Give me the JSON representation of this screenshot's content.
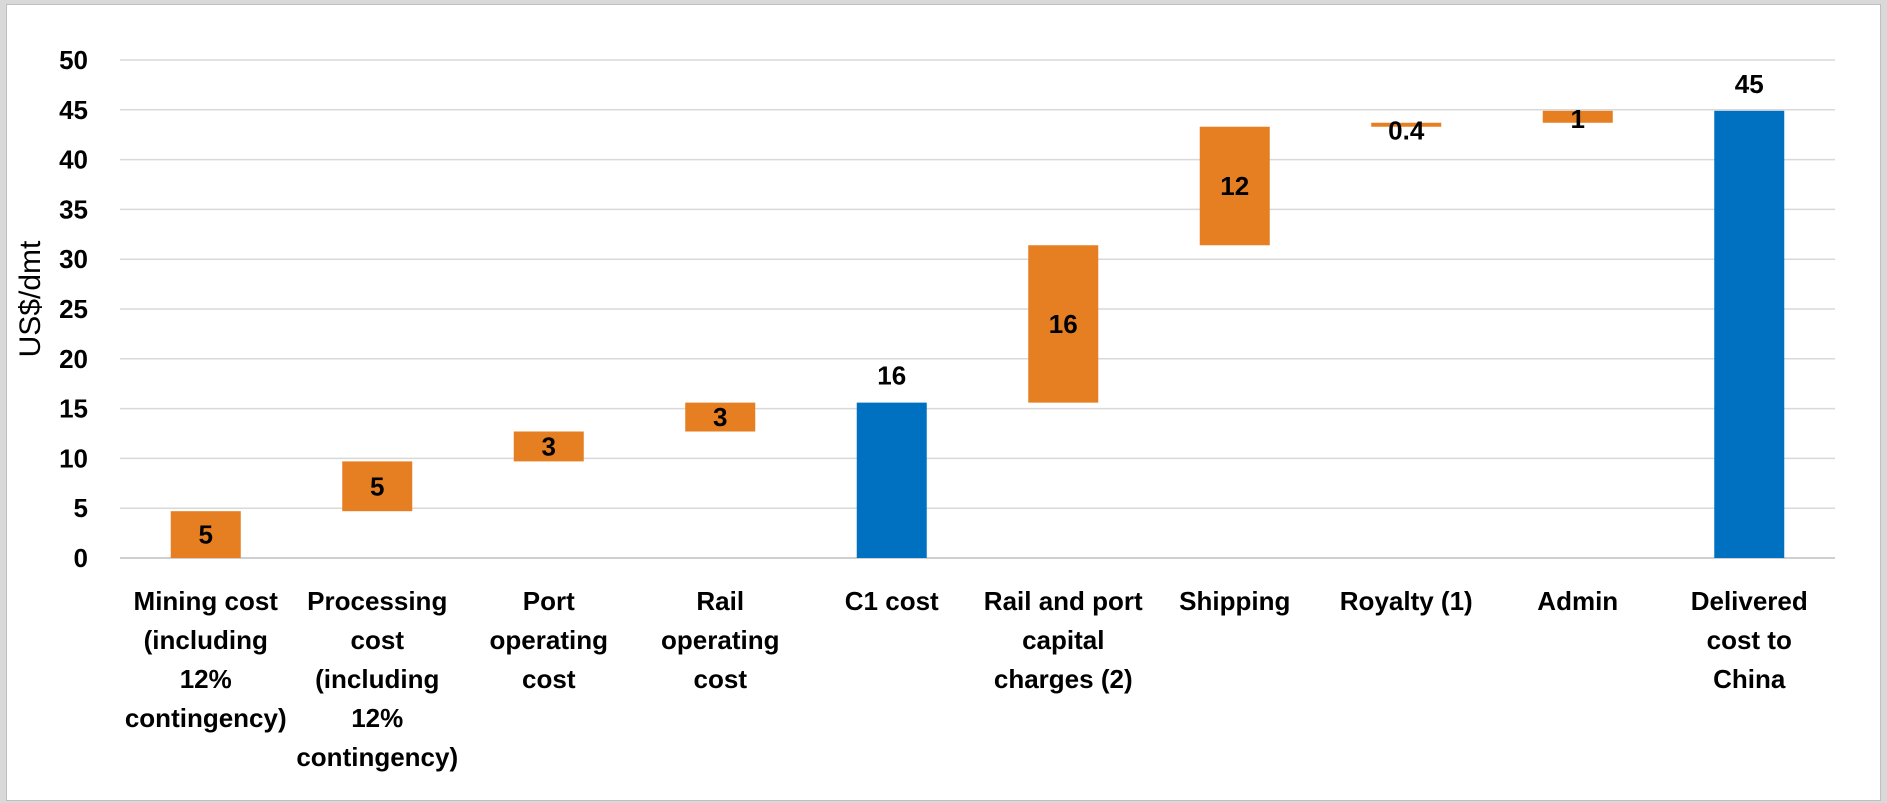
{
  "chart_data": {
    "type": "bar",
    "subtype": "waterfall",
    "ylabel": "US$/dmt",
    "ylim": [
      0,
      50
    ],
    "yticks": [
      0,
      5,
      10,
      15,
      20,
      25,
      30,
      35,
      40,
      45,
      50
    ],
    "grid": true,
    "legend": "none",
    "categories": [
      [
        "Mining cost",
        "(including",
        "12%",
        "contingency)"
      ],
      [
        "Processing",
        "cost",
        "(including",
        "12%",
        "contingency)"
      ],
      [
        "Port",
        "operating",
        "cost"
      ],
      [
        "Rail",
        "operating",
        "cost"
      ],
      [
        "C1 cost"
      ],
      [
        "Rail and port",
        "capital",
        "charges (2)"
      ],
      [
        "Shipping"
      ],
      [
        "Royalty (1)"
      ],
      [
        "Admin"
      ],
      [
        "Delivered",
        "cost to",
        "China"
      ]
    ],
    "bars": [
      {
        "kind": "increment",
        "base": 0,
        "value": 4.7,
        "label": "5"
      },
      {
        "kind": "increment",
        "base": 4.7,
        "value": 5.0,
        "label": "5"
      },
      {
        "kind": "increment",
        "base": 9.7,
        "value": 3.0,
        "label": "3"
      },
      {
        "kind": "increment",
        "base": 12.7,
        "value": 2.9,
        "label": "3"
      },
      {
        "kind": "total",
        "base": 0,
        "value": 15.6,
        "label": "16"
      },
      {
        "kind": "increment",
        "base": 15.6,
        "value": 15.8,
        "label": "16"
      },
      {
        "kind": "increment",
        "base": 31.4,
        "value": 11.9,
        "label": "12"
      },
      {
        "kind": "increment",
        "base": 43.3,
        "value": 0.4,
        "label": "0.4"
      },
      {
        "kind": "increment",
        "base": 43.7,
        "value": 1.2,
        "label": "1"
      },
      {
        "kind": "total",
        "base": 0,
        "value": 44.9,
        "label": "45"
      }
    ],
    "colors": {
      "increment": "#e67e22",
      "total": "#0070c0",
      "grid": "#d9d9d9",
      "axis": "#bfbfbf"
    }
  }
}
